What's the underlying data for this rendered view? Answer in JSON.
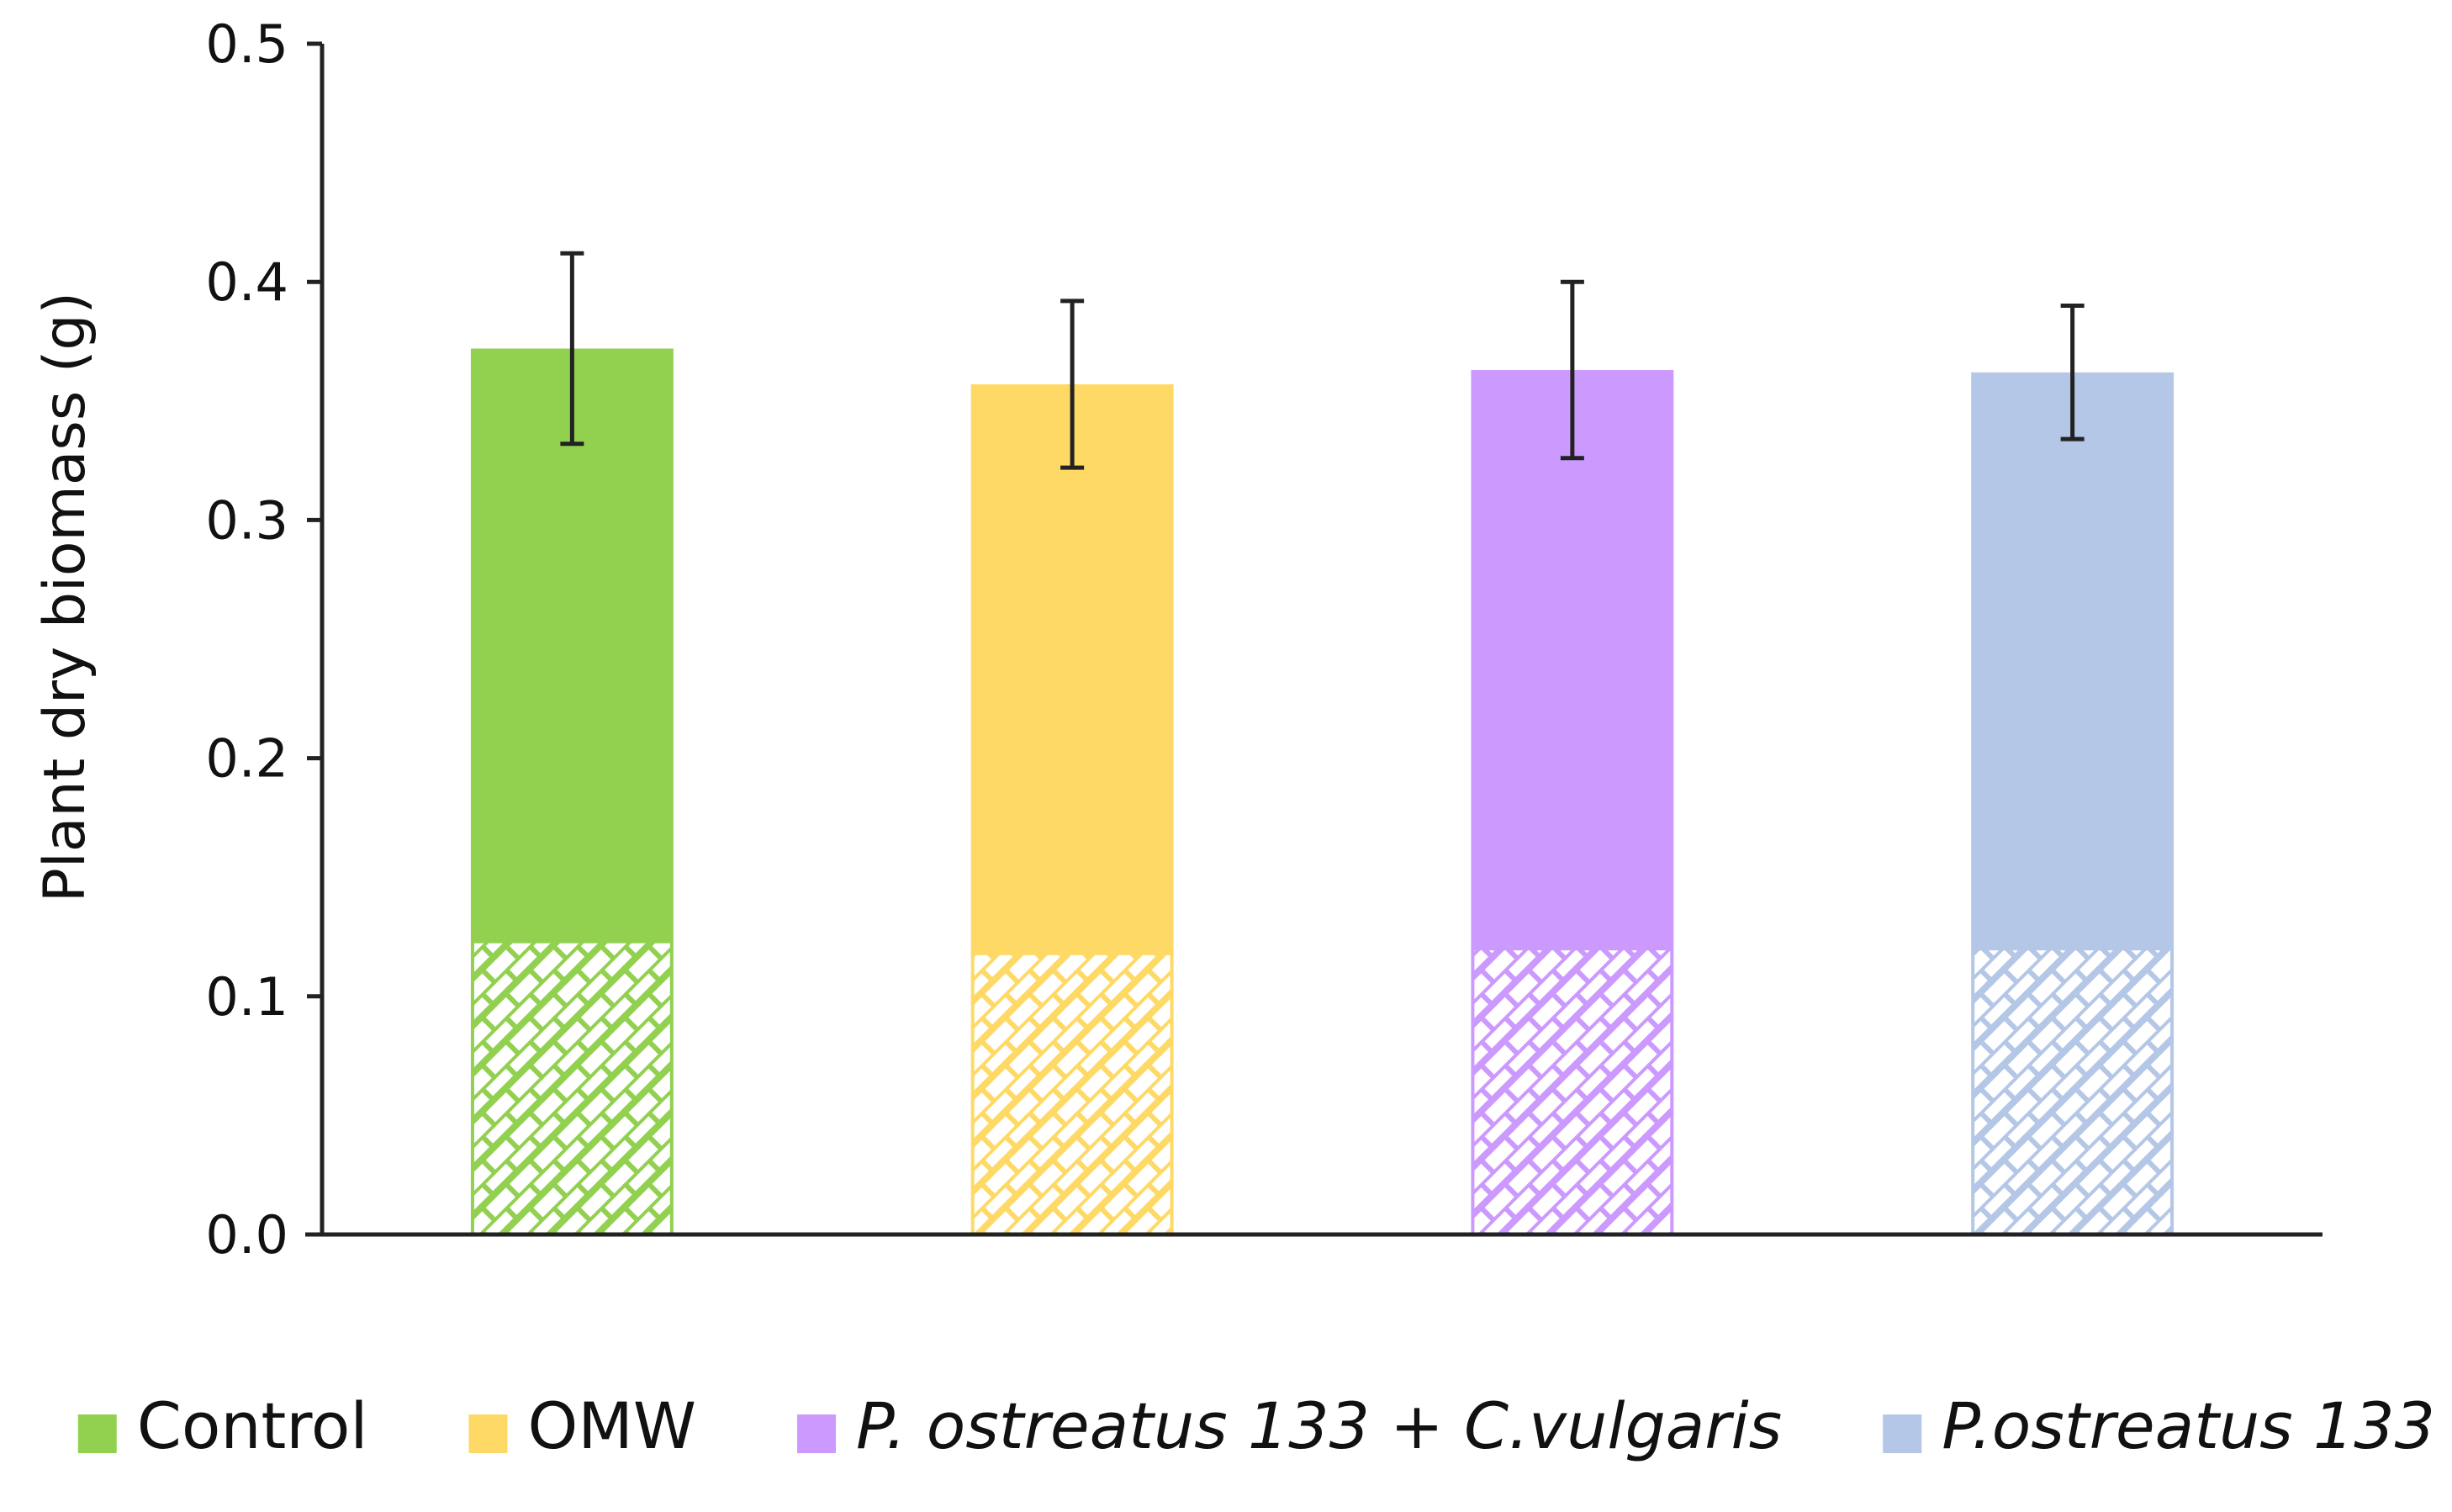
{
  "chart_data": {
    "type": "bar",
    "title": "",
    "xlabel": "",
    "ylabel": "Plant dry biomass (g)",
    "ylim": [
      0,
      0.5
    ],
    "yticks": [
      "0.0",
      "0.1",
      "0.2",
      "0.3",
      "0.4",
      "0.5"
    ],
    "grid": false,
    "legend_position": "bottom",
    "stacked": true,
    "bars": [
      {
        "name": "Control",
        "total": 0.372,
        "lower_segment": 0.123,
        "error": 0.04,
        "color": "#92d050",
        "italic": false
      },
      {
        "name": "OMW",
        "total": 0.357,
        "lower_segment": 0.118,
        "error": 0.035,
        "color": "#ffd966",
        "italic": false
      },
      {
        "name": "P. ostreatus 133 + C.vulgaris",
        "total": 0.363,
        "lower_segment": 0.12,
        "error": 0.037,
        "color": "#cc99ff",
        "italic": true
      },
      {
        "name": "P.ostreatus 133",
        "total": 0.362,
        "lower_segment": 0.12,
        "error": 0.028,
        "color": "#b4c7e7",
        "italic": true
      }
    ]
  }
}
